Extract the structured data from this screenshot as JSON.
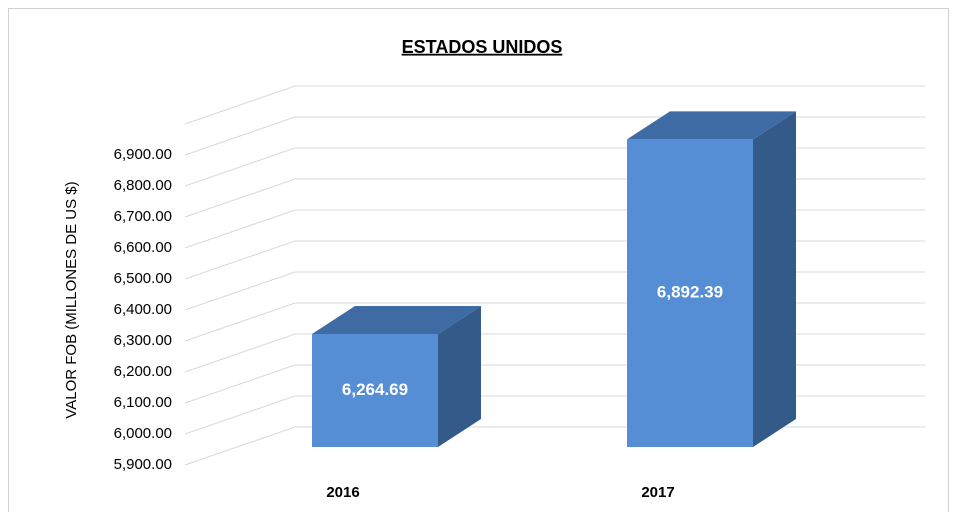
{
  "chart_data": {
    "type": "bar3d",
    "title": "ESTADOS UNIDOS",
    "y_label": "VALOR FOB (MILLONES DE US $)",
    "categories": [
      "2016",
      "2017"
    ],
    "values": [
      6264.69,
      6892.39
    ],
    "value_labels": [
      "6,264.69",
      "6,892.39"
    ],
    "color": "#558ed5",
    "ylim": [
      5900,
      7000
    ],
    "yticks": [
      {
        "value": 5900,
        "label": "5,900.00"
      },
      {
        "value": 6000,
        "label": "6,000.00"
      },
      {
        "value": 6100,
        "label": "6,100.00"
      },
      {
        "value": 6200,
        "label": "6,200.00"
      },
      {
        "value": 6300,
        "label": "6,300.00"
      },
      {
        "value": 6400,
        "label": "6,400.00"
      },
      {
        "value": 6500,
        "label": "6,500.00"
      },
      {
        "value": 6600,
        "label": "6,600.00"
      },
      {
        "value": 6700,
        "label": "6,700.00"
      },
      {
        "value": 6800,
        "label": "6,800.00"
      },
      {
        "value": 6900,
        "label": "6,900.00"
      }
    ],
    "grid": true
  }
}
